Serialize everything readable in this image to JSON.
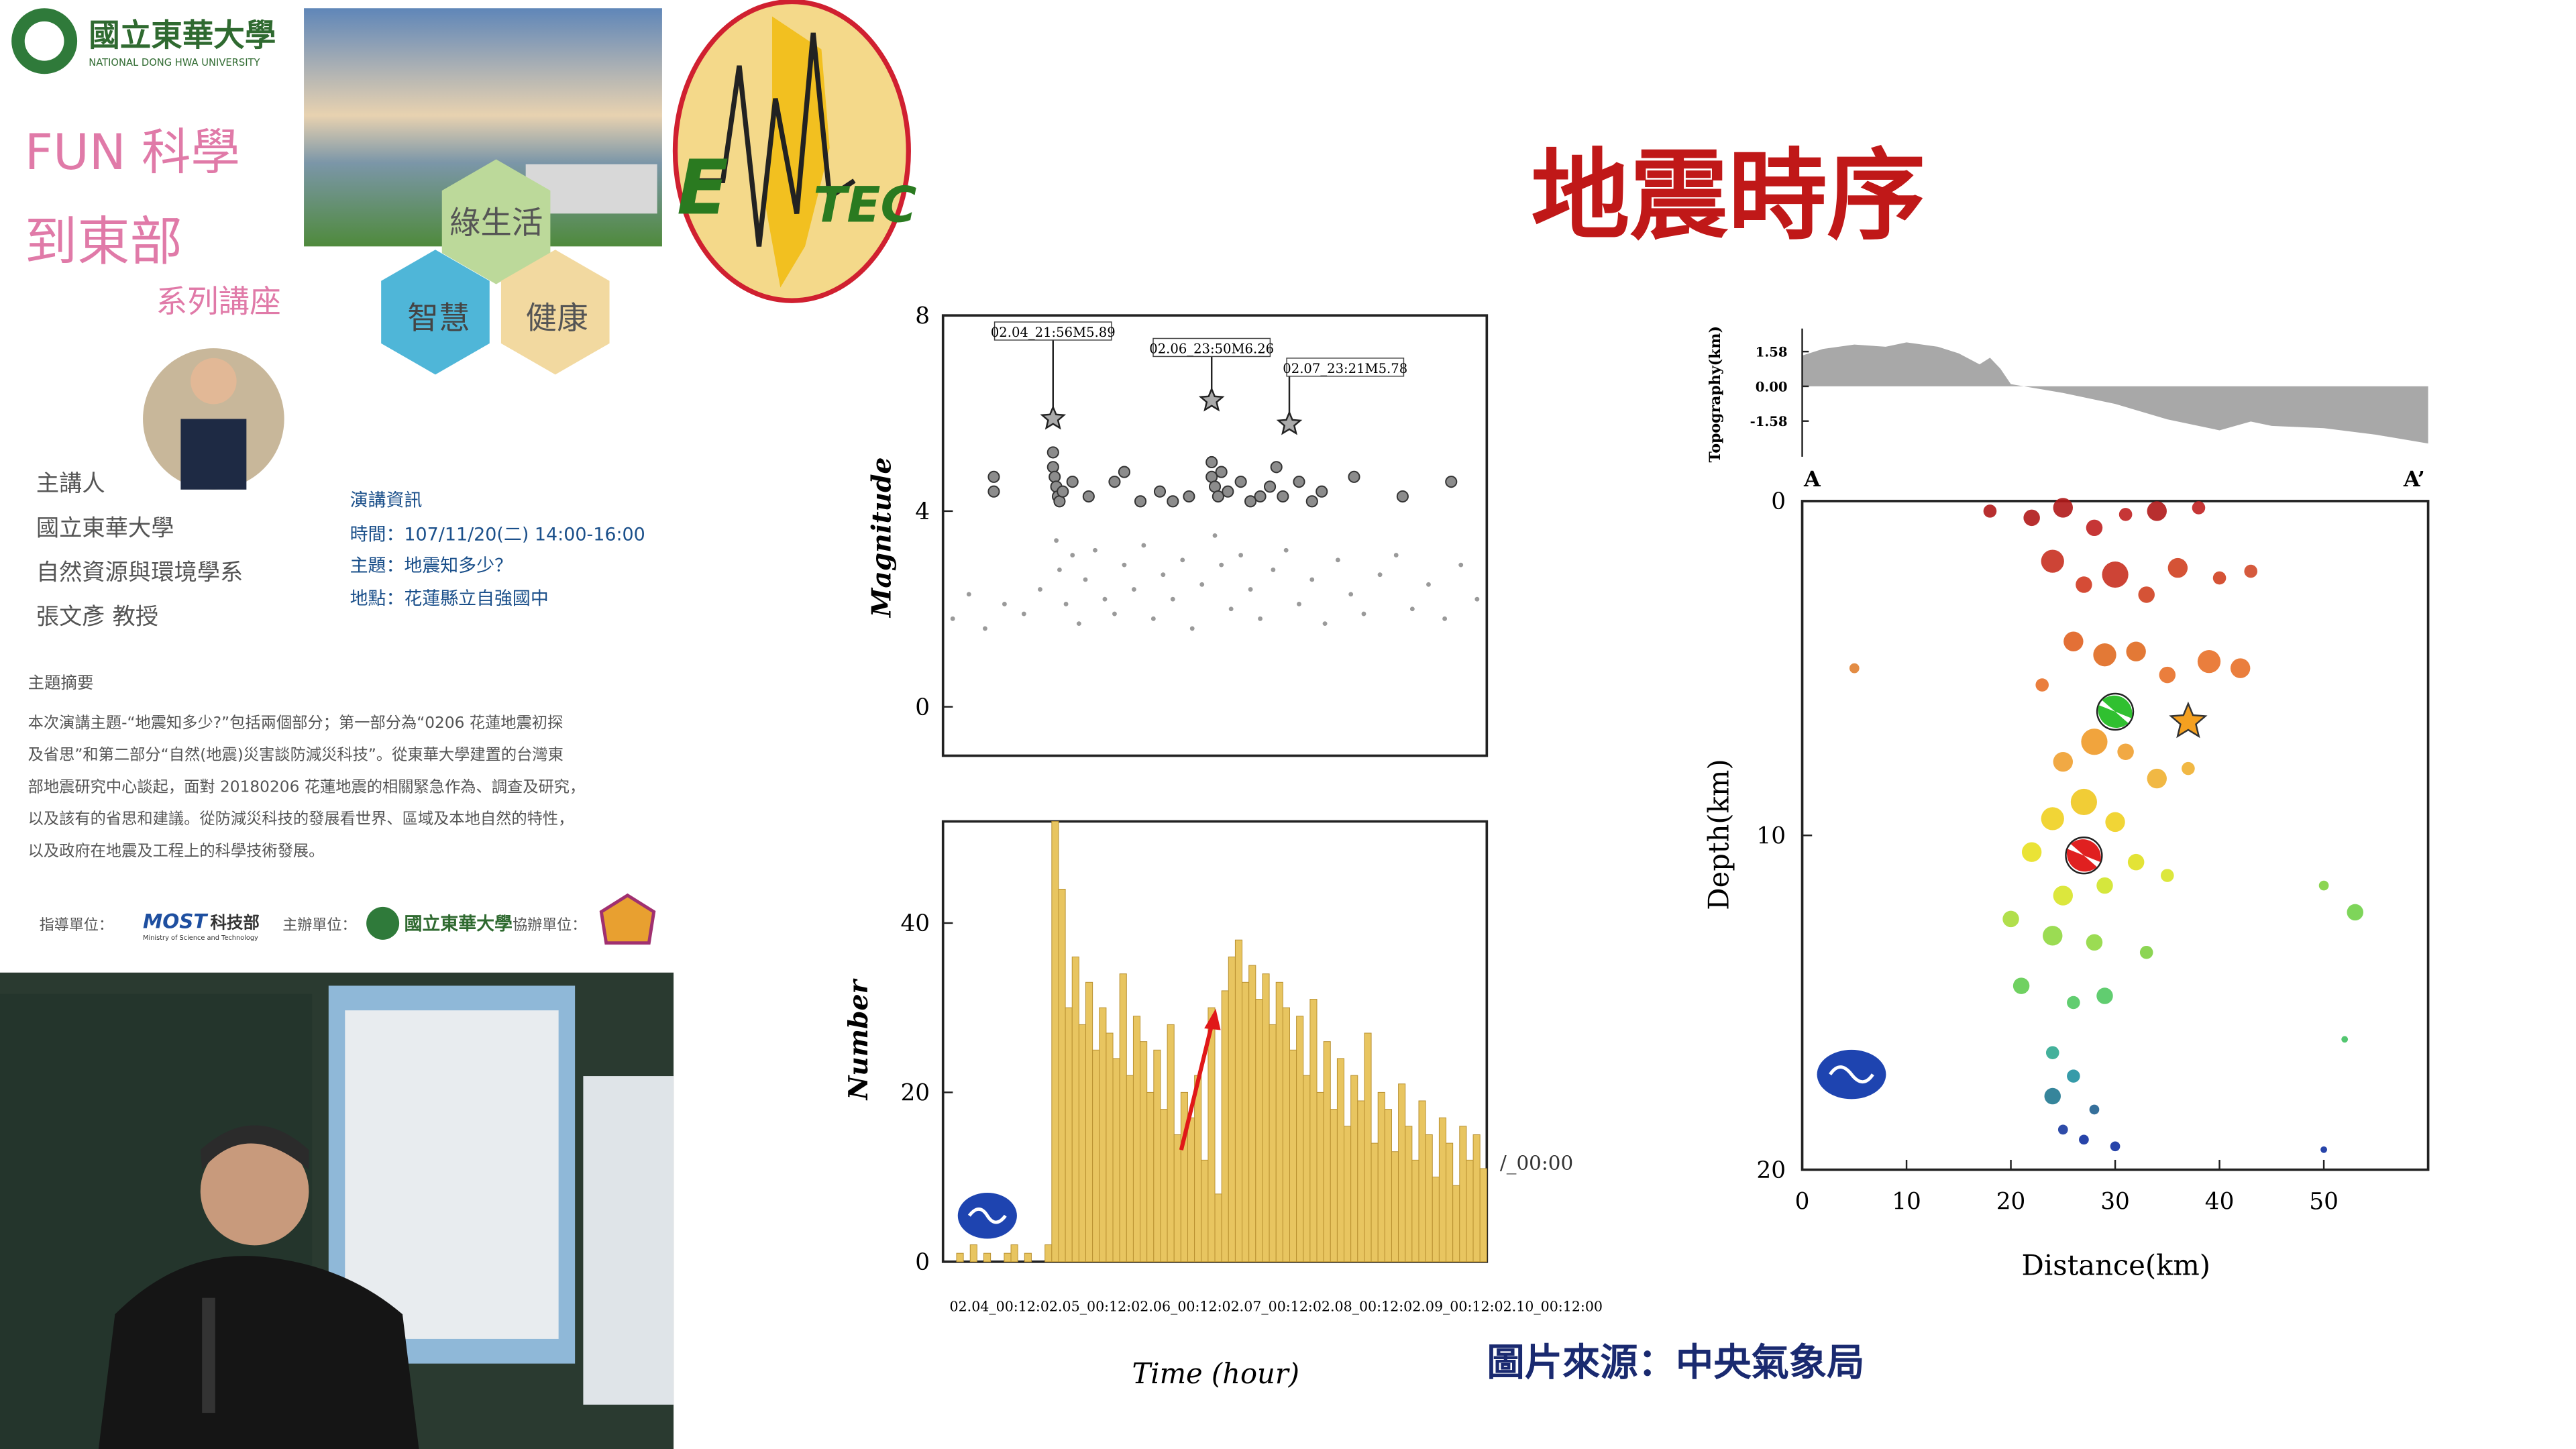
{
  "logo": {
    "name_zh": "國立東華大學",
    "name_en": "NATIONAL DONG HWA UNIVERSITY"
  },
  "series_title": {
    "line1": "FUN 科學",
    "line2": "到東部",
    "line3": "系列講座"
  },
  "hexagons": [
    "綠生活",
    "智慧",
    "健康"
  ],
  "etec_logo": {
    "left": "E",
    "right": "TEC"
  },
  "speaker": {
    "label": "主講人",
    "affiliation": "國立東華大學",
    "department": "自然資源與環境學系",
    "name": "張文彥 教授"
  },
  "talk_info": {
    "heading": "演講資訊",
    "time": "時間：107/11/20(二) 14:00-16:00",
    "topic": "主題：地震知多少？",
    "venue": "地點：花蓮縣立自強國中"
  },
  "abstract": {
    "heading": "主題摘要",
    "lines": [
      "本次演講主題-“地震知多少?”包括兩個部分；第一部分為“0206 花蓮地震初探",
      "及省思”和第二部分“自然(地震)災害談防減災科技”。從東華大學建置的台灣東",
      "部地震研究中心談起，面對 20180206 花蓮地震的相關緊急作為、調查及研究，",
      "以及該有的省思和建議。從防減災科技的發展看世界、區域及本地自然的特性，",
      "以及政府在地震及工程上的科學技術發展。"
    ]
  },
  "sponsors": {
    "guide_label": "指導單位：",
    "guide": "MOST",
    "guide_zh": "科技部",
    "guide_en": "Ministry of Science and Technology",
    "organizer_label": "主辦單位：",
    "organizer": "國立東華大學",
    "cosponsor_label": "協辦單位："
  },
  "slide": {
    "title": "地震時序",
    "source": "圖片來源：中央氣象局",
    "time_axis_fragment": "/_00:00"
  },
  "magnitude_chart": {
    "y_label": "Magnitude",
    "ylim": [
      -1,
      8
    ],
    "yticks": [
      0,
      4,
      8
    ],
    "xlim": [
      0,
      168
    ],
    "annotations": [
      {
        "label": "02.04_21:56M5.89",
        "x": 34,
        "value": 5.89
      },
      {
        "label": "02.06_23:50M6.26",
        "x": 83,
        "value": 6.26
      },
      {
        "label": "02.07_23:21M5.78",
        "x": 107,
        "value": 5.78
      }
    ],
    "large_points": {
      "color": "#8c8c8c",
      "x": [
        15.7,
        15.7,
        34,
        34,
        34.5,
        35,
        35.5,
        36,
        37,
        40,
        45,
        53,
        56,
        61,
        67,
        71,
        76,
        83,
        83,
        84,
        85,
        86,
        88,
        92,
        95,
        98,
        101,
        103,
        105,
        110,
        114,
        117,
        127,
        142,
        157
      ],
      "values": [
        4.7,
        4.4,
        5.2,
        4.9,
        4.7,
        4.5,
        4.3,
        4.2,
        4.4,
        4.6,
        4.3,
        4.6,
        4.8,
        4.2,
        4.4,
        4.2,
        4.3,
        5.0,
        4.7,
        4.5,
        4.3,
        4.8,
        4.4,
        4.6,
        4.2,
        4.3,
        4.5,
        4.9,
        4.3,
        4.6,
        4.2,
        4.4,
        4.7,
        4.3,
        4.6
      ]
    },
    "small_points": {
      "color": "#9a9a9a",
      "x": [
        3,
        8,
        13,
        19,
        25,
        30,
        35,
        36,
        38,
        40,
        42,
        44,
        47,
        50,
        53,
        56,
        59,
        62,
        65,
        68,
        71,
        74,
        77,
        80,
        84,
        86,
        89,
        92,
        95,
        98,
        102,
        106,
        110,
        114,
        118,
        122,
        126,
        130,
        135,
        140,
        145,
        150,
        155,
        160,
        165
      ],
      "values": [
        1.8,
        2.3,
        1.6,
        2.1,
        1.9,
        2.4,
        3.4,
        2.8,
        2.1,
        3.1,
        1.7,
        2.6,
        3.2,
        2.2,
        1.9,
        2.9,
        2.4,
        3.3,
        1.8,
        2.7,
        2.2,
        3.0,
        1.6,
        2.5,
        3.5,
        2.9,
        2.0,
        3.1,
        2.4,
        1.8,
        2.8,
        3.2,
        2.1,
        2.6,
        1.7,
        3.0,
        2.3,
        1.9,
        2.7,
        3.1,
        2.0,
        2.5,
        1.8,
        2.9,
        2.2
      ]
    }
  },
  "count_chart": {
    "y_label": "Number",
    "x_label": "Time (hour)",
    "x_tick_text": "02.04_00:12:02.05_00:12:02.06_00:12:02.07_00:12:02.08_00:12:02.09_00:12:02.10_00:12:00",
    "ylim": [
      0,
      52
    ],
    "yticks": [
      0,
      20,
      40
    ],
    "color": "#e8c560",
    "values": [
      0,
      0,
      1,
      0,
      2,
      0,
      1,
      0,
      0,
      1,
      2,
      0,
      1,
      0,
      0,
      2,
      52,
      44,
      30,
      36,
      28,
      33,
      25,
      30,
      27,
      24,
      34,
      22,
      29,
      26,
      20,
      25,
      18,
      28,
      15,
      20,
      17,
      22,
      12,
      30,
      8,
      32,
      36,
      38,
      33,
      35,
      31,
      34,
      28,
      33,
      30,
      25,
      29,
      22,
      31,
      20,
      26,
      18,
      24,
      16,
      22,
      19,
      27,
      14,
      20,
      18,
      13,
      21,
      16,
      12,
      19,
      15,
      10,
      17,
      14,
      9,
      16,
      12,
      15,
      11
    ]
  },
  "topography": {
    "y_label": "Topography(km)",
    "ylim": [
      -3.2,
      3
    ],
    "yticks": [
      1.58,
      {
        "value": 0,
        "label": "0.00"
      },
      -1.58
    ],
    "left_label": "A",
    "right_label": "A’",
    "color": "#a8a8a8",
    "x": [
      0,
      2,
      5,
      8,
      10,
      13,
      15,
      17,
      18,
      19,
      20,
      25,
      30,
      35,
      40,
      43,
      45,
      50,
      55,
      60
    ],
    "values": [
      1.4,
      1.7,
      1.9,
      1.8,
      2.0,
      1.8,
      1.5,
      1.0,
      1.3,
      0.8,
      0.1,
      -0.3,
      -0.8,
      -1.5,
      -2.0,
      -1.6,
      -1.8,
      -1.9,
      -2.2,
      -2.6
    ]
  },
  "depth_chart": {
    "x_label": "Distance(km)",
    "y_label": "Depth(km)",
    "xlim": [
      0,
      60
    ],
    "xticks": [
      0,
      10,
      20,
      30,
      40,
      50
    ],
    "ylim": [
      0,
      20
    ],
    "yticks": [
      0,
      10,
      20
    ],
    "points": {
      "distance": [
        18,
        22,
        25,
        28,
        31,
        34,
        38,
        24,
        27,
        30,
        33,
        36,
        40,
        43,
        26,
        29,
        32,
        35,
        39,
        42,
        23,
        28,
        25,
        31,
        34,
        37,
        5,
        24,
        27,
        30,
        22,
        32,
        25,
        29,
        35,
        20,
        24,
        28,
        33,
        21,
        26,
        29,
        53,
        50,
        52,
        24,
        26,
        24,
        28,
        25,
        27,
        30,
        50
      ],
      "depth": [
        0.3,
        0.5,
        0.2,
        0.8,
        0.4,
        0.3,
        0.2,
        1.8,
        2.5,
        2.2,
        2.8,
        2.0,
        2.3,
        2.1,
        4.2,
        4.6,
        4.5,
        5.2,
        4.8,
        5.0,
        5.5,
        7.2,
        7.8,
        7.5,
        8.3,
        8.0,
        5.0,
        9.5,
        9.0,
        9.6,
        10.5,
        10.8,
        11.8,
        11.5,
        11.2,
        12.5,
        13.0,
        13.2,
        13.5,
        14.5,
        15.0,
        14.8,
        12.3,
        11.5,
        16.1,
        16.5,
        17.2,
        17.8,
        18.2,
        18.8,
        19.1,
        19.3,
        19.4
      ],
      "size": [
        4,
        5,
        6,
        5,
        4,
        6,
        4,
        7,
        5,
        8,
        5,
        6,
        4,
        4,
        6,
        7,
        6,
        5,
        7,
        6,
        4,
        8,
        6,
        5,
        6,
        4,
        3,
        7,
        8,
        6,
        6,
        5,
        6,
        5,
        4,
        5,
        6,
        5,
        4,
        5,
        4,
        5,
        5,
        3,
        2,
        4,
        4,
        5,
        3,
        3,
        3,
        3,
        2
      ],
      "colors": [
        "#b01818",
        "#b01818",
        "#b01818",
        "#c02020",
        "#c02020",
        "#b01818",
        "#c02020",
        "#c83020",
        "#d03820",
        "#c83020",
        "#d04020",
        "#d04020",
        "#d04020",
        "#d04828",
        "#e06020",
        "#e06a20",
        "#e06a20",
        "#e87028",
        "#e87028",
        "#e87028",
        "#e87028",
        "#f09a28",
        "#f0a030",
        "#f0a030",
        "#f0b030",
        "#f0b030",
        "#e08030",
        "#f0d020",
        "#f0c820",
        "#f0d020",
        "#e8e020",
        "#e0e020",
        "#d8e428",
        "#d0e428",
        "#d8e428",
        "#a8dc38",
        "#90d840",
        "#90d840",
        "#80d040",
        "#60cc50",
        "#50c860",
        "#50c860",
        "#70d048",
        "#80d040",
        "#40c060",
        "#30a890",
        "#2090a0",
        "#207890",
        "#206090",
        "#1838a0",
        "#1030a0",
        "#1030a0",
        "#1030a0"
      ]
    },
    "mainshock": {
      "distance": 37,
      "depth": 6.6
    },
    "focal_mechanisms": {
      "distance": [
        30,
        27
      ],
      "depth": [
        6.3,
        10.6
      ],
      "colors": [
        "#30c030",
        "#e02020"
      ]
    }
  }
}
